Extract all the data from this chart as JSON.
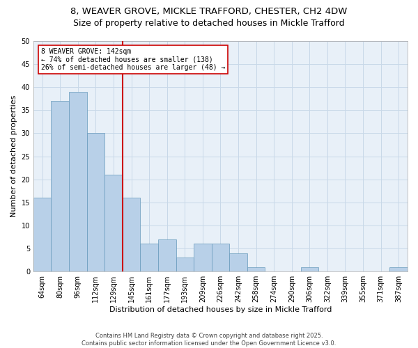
{
  "title_line1": "8, WEAVER GROVE, MICKLE TRAFFORD, CHESTER, CH2 4DW",
  "title_line2": "Size of property relative to detached houses in Mickle Trafford",
  "xlabel": "Distribution of detached houses by size in Mickle Trafford",
  "ylabel": "Number of detached properties",
  "categories": [
    "64sqm",
    "80sqm",
    "96sqm",
    "112sqm",
    "129sqm",
    "145sqm",
    "161sqm",
    "177sqm",
    "193sqm",
    "209sqm",
    "226sqm",
    "242sqm",
    "258sqm",
    "274sqm",
    "290sqm",
    "306sqm",
    "322sqm",
    "339sqm",
    "355sqm",
    "371sqm",
    "387sqm"
  ],
  "values": [
    16,
    37,
    39,
    30,
    21,
    16,
    6,
    7,
    3,
    6,
    6,
    4,
    1,
    0,
    0,
    1,
    0,
    0,
    0,
    0,
    1
  ],
  "bar_color": "#b8d0e8",
  "bar_edge_color": "#6699bb",
  "vline_color": "#cc0000",
  "annotation_text": "8 WEAVER GROVE: 142sqm\n← 74% of detached houses are smaller (138)\n26% of semi-detached houses are larger (48) →",
  "annotation_box_color": "#cc0000",
  "annotation_fontsize": 7.0,
  "ylim": [
    0,
    50
  ],
  "yticks": [
    0,
    5,
    10,
    15,
    20,
    25,
    30,
    35,
    40,
    45,
    50
  ],
  "grid_color": "#c8d8e8",
  "background_color": "#e8f0f8",
  "footer_text": "Contains HM Land Registry data © Crown copyright and database right 2025.\nContains public sector information licensed under the Open Government Licence v3.0.",
  "title1_fontsize": 9.5,
  "title2_fontsize": 9.0,
  "axis_label_fontsize": 8.0,
  "tick_fontsize": 7.0,
  "footer_fontsize": 6.0
}
